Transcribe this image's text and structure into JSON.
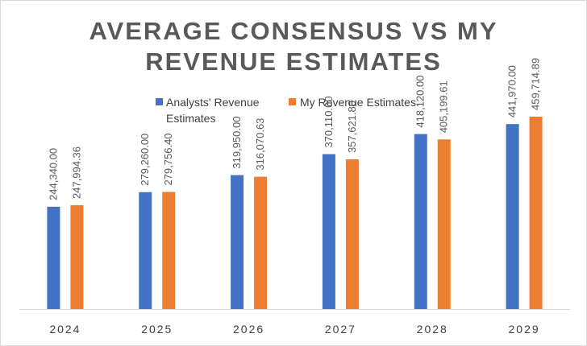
{
  "chart_data": {
    "type": "bar",
    "title_lines": [
      "AVERAGE CONSENSUS VS MY",
      "REVENUE ESTIMATES"
    ],
    "categories": [
      "2024",
      "2025",
      "2026",
      "2027",
      "2028",
      "2029"
    ],
    "series": [
      {
        "name": "Analysts' Revenue Estimates",
        "legend_lines": [
          "Analysts' Revenue",
          "Estimates"
        ],
        "color": "#4472C4",
        "values": [
          244340.0,
          279260.0,
          319950.0,
          370110.0,
          418120.0,
          441970.0
        ],
        "labels": [
          "244,340.00",
          "279,260.00",
          "319,950.00",
          "370,110.00",
          "418,120.00",
          "441,970.00"
        ]
      },
      {
        "name": "My Revenue Estimates",
        "legend_lines": [
          "My Revenue Estimates"
        ],
        "color": "#ED7D31",
        "values": [
          247994.36,
          279756.4,
          316070.63,
          357621.8,
          405199.61,
          459714.89
        ],
        "labels": [
          "247,994.36",
          "279,756.40",
          "316,070.63",
          "357,621.80",
          "405,199.61",
          "459,714.89"
        ]
      }
    ],
    "xlabel": "",
    "ylabel": "",
    "ylim": [
      0,
      600000
    ],
    "grid": false,
    "legend_position": "top"
  }
}
